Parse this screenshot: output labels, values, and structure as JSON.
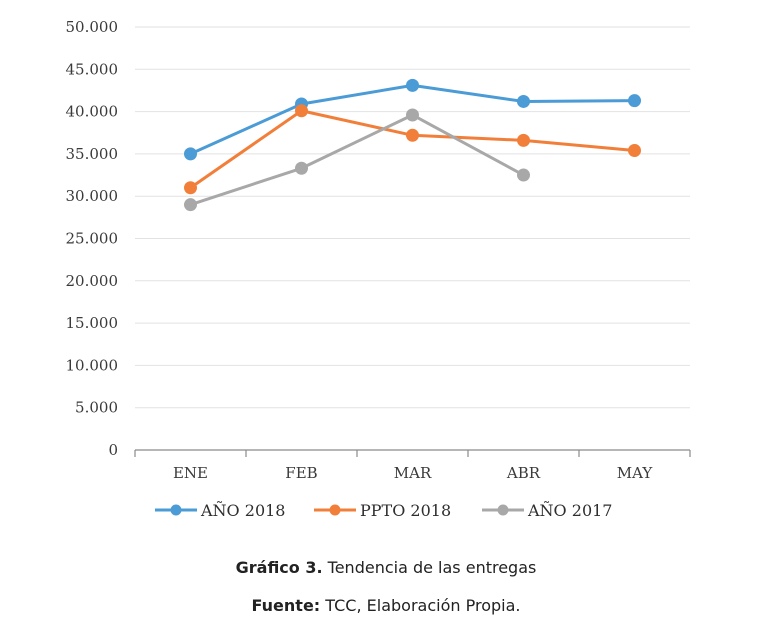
{
  "chart_data": {
    "type": "line",
    "categories": [
      "ENE",
      "FEB",
      "MAR",
      "ABR",
      "MAY"
    ],
    "ylim": [
      0,
      50000
    ],
    "yticks": [
      0,
      5000,
      10000,
      15000,
      20000,
      25000,
      30000,
      35000,
      40000,
      45000,
      50000
    ],
    "ytick_labels": [
      "0",
      "5.000",
      "10.000",
      "15.000",
      "20.000",
      "25.000",
      "30.000",
      "35.000",
      "40.000",
      "45.000",
      "50.000"
    ],
    "grid": true,
    "legend_position": "bottom",
    "series": [
      {
        "name": "AÑO 2018",
        "color": "#4A9BD6",
        "values": [
          35000,
          40900,
          43100,
          41200,
          41300
        ]
      },
      {
        "name": "PPTO 2018",
        "color": "#F17F3A",
        "values": [
          31000,
          40100,
          37200,
          36600,
          35400
        ]
      },
      {
        "name": "AÑO 2017",
        "color": "#A8A8A8",
        "values": [
          29000,
          33300,
          39600,
          32500,
          null
        ]
      }
    ]
  },
  "caption": {
    "label": "Gráfico 3.",
    "text": "Tendencia de las entregas"
  },
  "source": {
    "label": "Fuente:",
    "text": "TCC, Elaboración Propia."
  }
}
